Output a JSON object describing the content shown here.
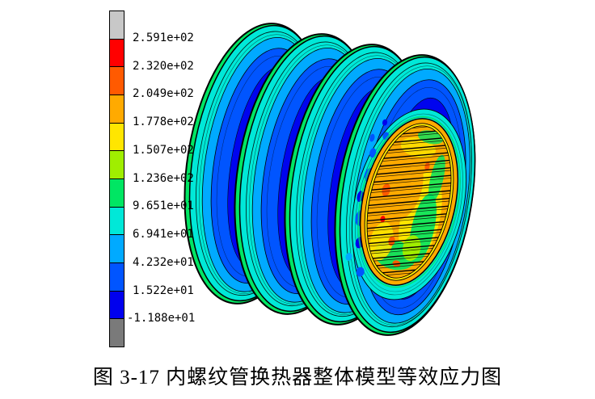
{
  "palette": {
    "background": "#FFFFFF",
    "outline": "#000000",
    "gray_top": "#C8C8C8",
    "red": "#FF0000",
    "red_orange": "#FF5A00",
    "orange": "#FFAA00",
    "yellow": "#FFE600",
    "yellow_green": "#A0EE00",
    "green": "#00E663",
    "cyan": "#00E8D8",
    "light_blue": "#00AAFF",
    "blue": "#0055FF",
    "deep_blue": "#0000EE",
    "gray_bottom": "#7A7A7A"
  },
  "colorbar": {
    "segment_colors": [
      "#C8C8C8",
      "#FF0000",
      "#FF5A00",
      "#FFAA00",
      "#FFE600",
      "#A0EE00",
      "#00E663",
      "#00E8D8",
      "#00AAFF",
      "#0055FF",
      "#0000EE",
      "#7A7A7A"
    ],
    "boundary_labels": [
      "2.591e+02",
      "2.320e+02",
      "2.049e+02",
      "1.778e+02",
      "1.507e+02",
      "1.236e+02",
      "9.651e+01",
      "6.941e+01",
      "4.232e+01",
      "1.522e+01",
      "-1.188e+01"
    ]
  },
  "model": {
    "tube_row_count": 21,
    "stripe_angle_deg": -5,
    "rib_count": 4
  },
  "caption": {
    "text": "图 3-17  内螺纹管换热器整体模型等效应力图"
  }
}
